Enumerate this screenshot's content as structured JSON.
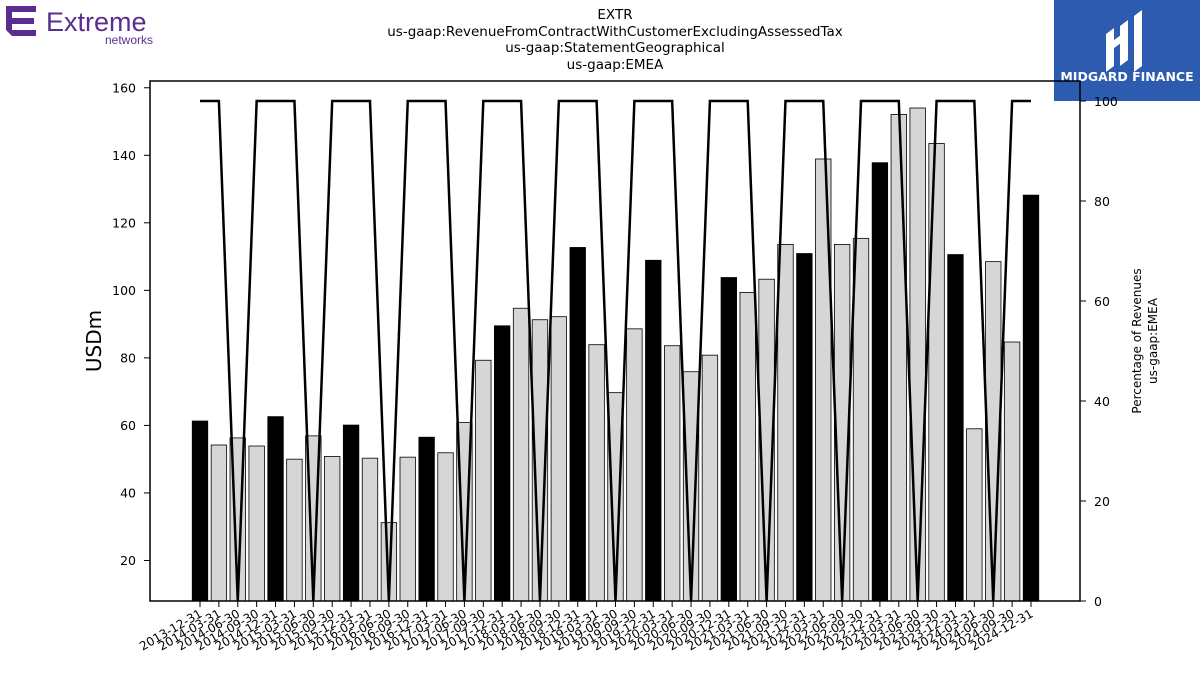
{
  "logos": {
    "left_brand": "Extreme",
    "left_sub": "networks",
    "right_brand": "MIDGARD FINANCE",
    "left_color": "#5b2d91",
    "right_bg": "#2d5bb0"
  },
  "title": {
    "line1": "EXTR",
    "line2": "us-gaap:RevenueFromContractWithCustomerExcludingAssessedTax",
    "line3": "us-gaap:StatementGeographical",
    "line4": "us-gaap:EMEA"
  },
  "chart_data": {
    "type": "bar",
    "ylabel": "USDm",
    "y2label_line1": "Percentage of Revenues",
    "y2label_line2": "us-gaap:EMEA",
    "ylim": [
      8,
      162
    ],
    "y2lim": [
      0,
      104
    ],
    "yticks": [
      20,
      40,
      60,
      80,
      100,
      120,
      140,
      160
    ],
    "y2ticks": [
      0,
      20,
      40,
      60,
      80,
      100
    ],
    "grid": false,
    "categories": [
      "2013-12-31",
      "2014-03-31",
      "2014-06-30",
      "2014-09-30",
      "2014-12-31",
      "2015-03-31",
      "2015-06-30",
      "2015-09-30",
      "2015-12-31",
      "2016-03-31",
      "2016-06-30",
      "2016-09-30",
      "2016-12-31",
      "2017-03-31",
      "2017-06-30",
      "2017-09-30",
      "2017-12-31",
      "2018-03-31",
      "2018-06-30",
      "2018-09-30",
      "2018-12-31",
      "2019-03-31",
      "2019-06-30",
      "2019-09-30",
      "2019-12-31",
      "2020-03-31",
      "2020-06-30",
      "2020-09-30",
      "2020-12-31",
      "2021-03-31",
      "2021-06-30",
      "2021-09-30",
      "2021-12-31",
      "2022-03-31",
      "2022-06-30",
      "2022-09-30",
      "2022-12-31",
      "2023-03-31",
      "2023-06-30",
      "2023-09-30",
      "2023-12-31",
      "2024-03-31",
      "2024-06-30",
      "2024-09-30",
      "2024-12-31"
    ],
    "values": [
      61.3,
      54.2,
      56.3,
      53.9,
      62.6,
      50.0,
      56.9,
      50.8,
      60.1,
      50.3,
      31.2,
      50.6,
      56.5,
      51.9,
      60.9,
      79.3,
      89.5,
      94.7,
      91.3,
      92.2,
      112.7,
      83.9,
      69.7,
      88.6,
      108.9,
      83.6,
      75.9,
      80.8,
      103.8,
      99.4,
      103.3,
      113.6,
      110.9,
      138.9,
      113.6,
      115.4,
      137.8,
      152.1,
      154.0,
      143.5,
      110.6,
      59.0,
      108.5,
      84.7,
      128.2
    ],
    "highlight": [
      true,
      false,
      false,
      false,
      true,
      false,
      false,
      false,
      true,
      false,
      false,
      false,
      true,
      false,
      false,
      false,
      true,
      false,
      false,
      false,
      true,
      false,
      false,
      false,
      true,
      false,
      false,
      false,
      true,
      false,
      false,
      false,
      true,
      false,
      false,
      false,
      true,
      false,
      false,
      false,
      true,
      false,
      false,
      false,
      true
    ],
    "series": [
      {
        "type": "line",
        "axis": "right",
        "values": [
          100,
          100,
          0,
          100,
          100,
          100,
          0,
          100,
          100,
          100,
          0,
          100,
          100,
          100,
          0,
          100,
          100,
          100,
          0,
          100,
          100,
          100,
          0,
          100,
          100,
          100,
          0,
          100,
          100,
          100,
          0,
          100,
          100,
          100,
          0,
          100,
          100,
          100,
          0,
          100,
          100,
          100,
          0,
          100,
          100
        ]
      }
    ],
    "colors": {
      "highlight": "#000000",
      "normal": "#d6d6d6",
      "line": "#000000"
    }
  }
}
